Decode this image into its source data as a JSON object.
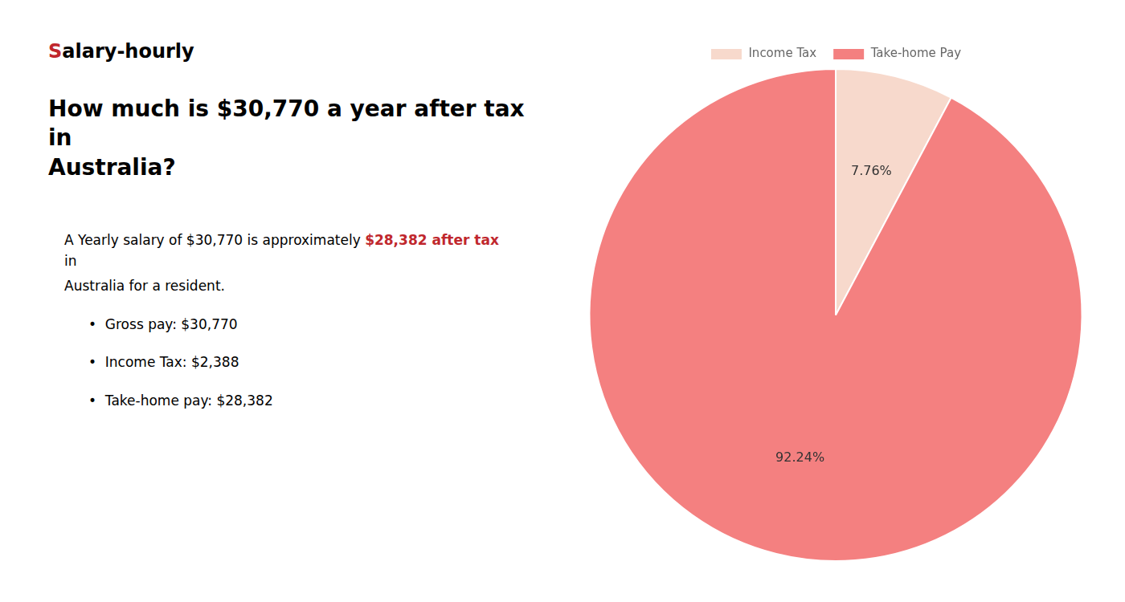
{
  "chart_data": {
    "type": "pie",
    "title": [
      "How much is $30,770 a year after tax in",
      "Australia?"
    ],
    "categories": [
      "Income Tax",
      "Take-home Pay"
    ],
    "values": [
      7.76,
      92.24
    ],
    "value_labels": [
      "7.76%",
      "92.24%"
    ],
    "data_labels": true,
    "colors": [
      "#f7d9cc",
      "#f48080"
    ],
    "legend": "top",
    "annotations": [
      [
        {
          "text": "S",
          "color": "#c0272d"
        },
        {
          "text": "alary-hourly"
        }
      ],
      [
        {
          "text": "A Yearly salary of $30,770 is approximately "
        },
        {
          "text": "$28,382 after tax",
          "color": "#c0272d"
        },
        {
          "text": " in"
        }
      ],
      [
        {
          "text": "Australia for a resident."
        }
      ],
      [
        {
          "text": "•  Gross pay: $30,770"
        }
      ],
      [
        {
          "text": "•  Income Tax: $2,388"
        }
      ],
      [
        {
          "text": "•  Take-home pay: $28,382"
        }
      ]
    ]
  }
}
